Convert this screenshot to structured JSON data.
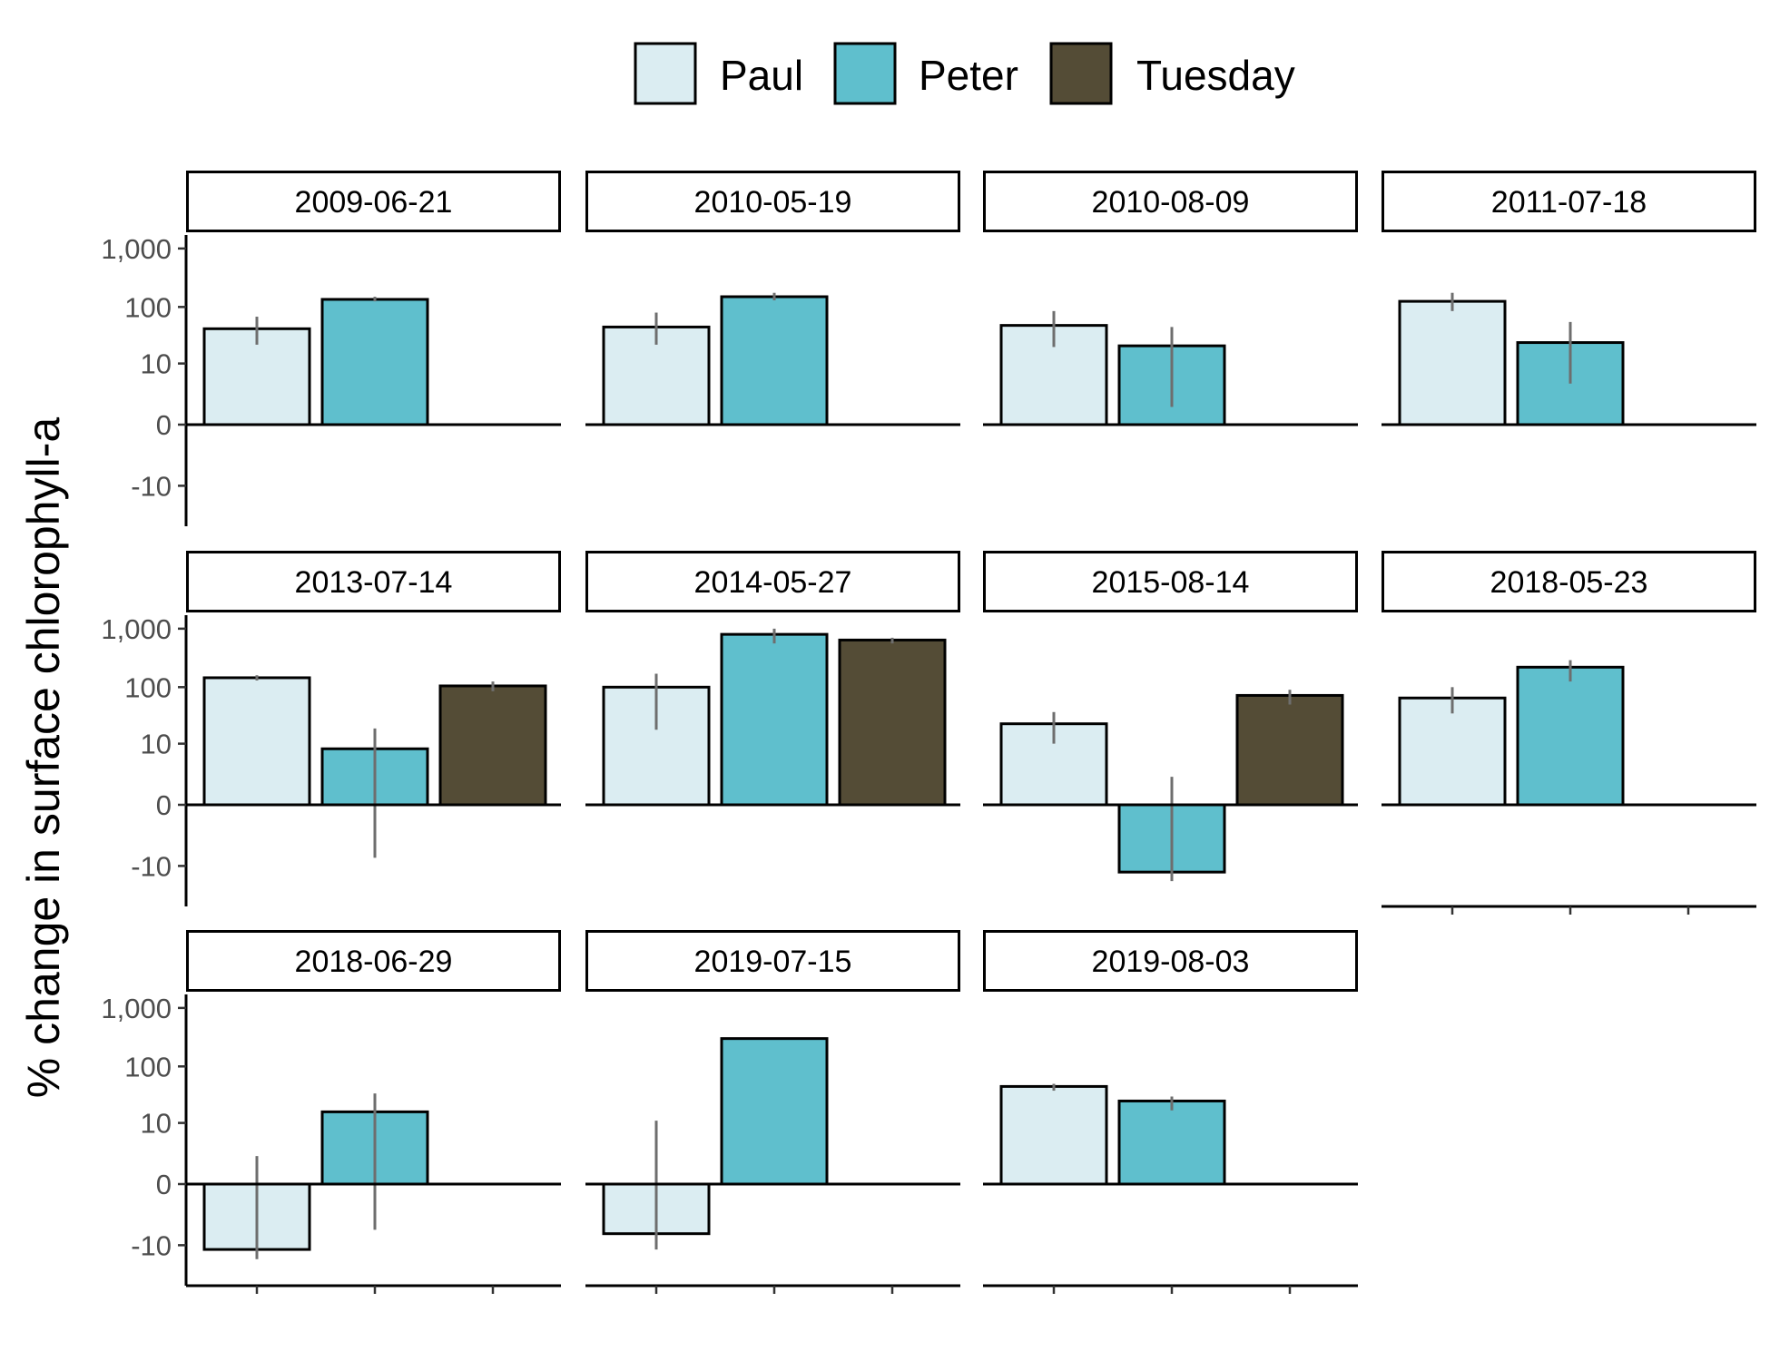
{
  "chart_data": {
    "type": "bar",
    "ylabel": "% change in surface chlorophyll-a",
    "xlabel": "",
    "y_scale": "pseudo-log",
    "y_ticks": [
      -10,
      0,
      10,
      100,
      1000
    ],
    "y_tick_labels": [
      "-10",
      "0",
      "10",
      "100",
      "1,000"
    ],
    "ylim": [
      -32,
      1600
    ],
    "legend_position": "top",
    "categories": [
      "Paul",
      "Peter",
      "Tuesday"
    ],
    "colors": {
      "Paul": "#dbedf2",
      "Peter": "#5fbfcd",
      "Tuesday": "#544c36"
    },
    "panels": [
      {
        "label": "2009-06-21",
        "bars": [
          {
            "lake": "Paul",
            "value": 42,
            "lo": 22,
            "hi": 68
          },
          {
            "lake": "Peter",
            "value": 135,
            "lo": 125,
            "hi": 150
          }
        ]
      },
      {
        "label": "2010-05-19",
        "bars": [
          {
            "lake": "Paul",
            "value": 45,
            "lo": 22,
            "hi": 80
          },
          {
            "lake": "Peter",
            "value": 150,
            "lo": 130,
            "hi": 175
          }
        ]
      },
      {
        "label": "2010-08-09",
        "bars": [
          {
            "lake": "Paul",
            "value": 48,
            "lo": 20,
            "hi": 85
          },
          {
            "lake": "Peter",
            "value": 21,
            "lo": 1,
            "hi": 45
          }
        ]
      },
      {
        "label": "2011-07-18",
        "bars": [
          {
            "lake": "Paul",
            "value": 125,
            "lo": 85,
            "hi": 175
          },
          {
            "lake": "Peter",
            "value": 24,
            "lo": 4,
            "hi": 55
          }
        ]
      },
      {
        "label": "2013-07-14",
        "bars": [
          {
            "lake": "Paul",
            "value": 145,
            "lo": 130,
            "hi": 160
          },
          {
            "lake": "Peter",
            "value": 8,
            "lo": -7,
            "hi": 19
          },
          {
            "lake": "Tuesday",
            "value": 105,
            "lo": 85,
            "hi": 125
          }
        ]
      },
      {
        "label": "2014-05-27",
        "bars": [
          {
            "lake": "Paul",
            "value": 100,
            "lo": 18,
            "hi": 170
          },
          {
            "lake": "Peter",
            "value": 800,
            "lo": 560,
            "hi": 1000
          },
          {
            "lake": "Tuesday",
            "value": 640,
            "lo": 560,
            "hi": 700
          }
        ]
      },
      {
        "label": "2015-08-14",
        "bars": [
          {
            "lake": "Paul",
            "value": 23,
            "lo": 10,
            "hi": 37
          },
          {
            "lake": "Peter",
            "value": -13,
            "lo": -19,
            "hi": 2
          },
          {
            "lake": "Tuesday",
            "value": 72,
            "lo": 50,
            "hi": 90
          }
        ]
      },
      {
        "label": "2018-05-23",
        "bars": [
          {
            "lake": "Paul",
            "value": 65,
            "lo": 35,
            "hi": 100
          },
          {
            "lake": "Peter",
            "value": 220,
            "lo": 125,
            "hi": 290
          }
        ]
      },
      {
        "label": "2018-06-29",
        "bars": [
          {
            "lake": "Paul",
            "value": -12,
            "lo": -18,
            "hi": 2
          },
          {
            "lake": "Peter",
            "value": 16,
            "lo": -5,
            "hi": 34
          }
        ]
      },
      {
        "label": "2019-07-15",
        "bars": [
          {
            "lake": "Paul",
            "value": -6,
            "lo": -12,
            "hi": 11
          },
          {
            "lake": "Peter",
            "value": 300
          }
        ]
      },
      {
        "label": "2019-08-03",
        "bars": [
          {
            "lake": "Paul",
            "value": 45,
            "lo": 38,
            "hi": 50
          },
          {
            "lake": "Peter",
            "value": 25,
            "lo": 17,
            "hi": 30
          }
        ]
      }
    ]
  }
}
